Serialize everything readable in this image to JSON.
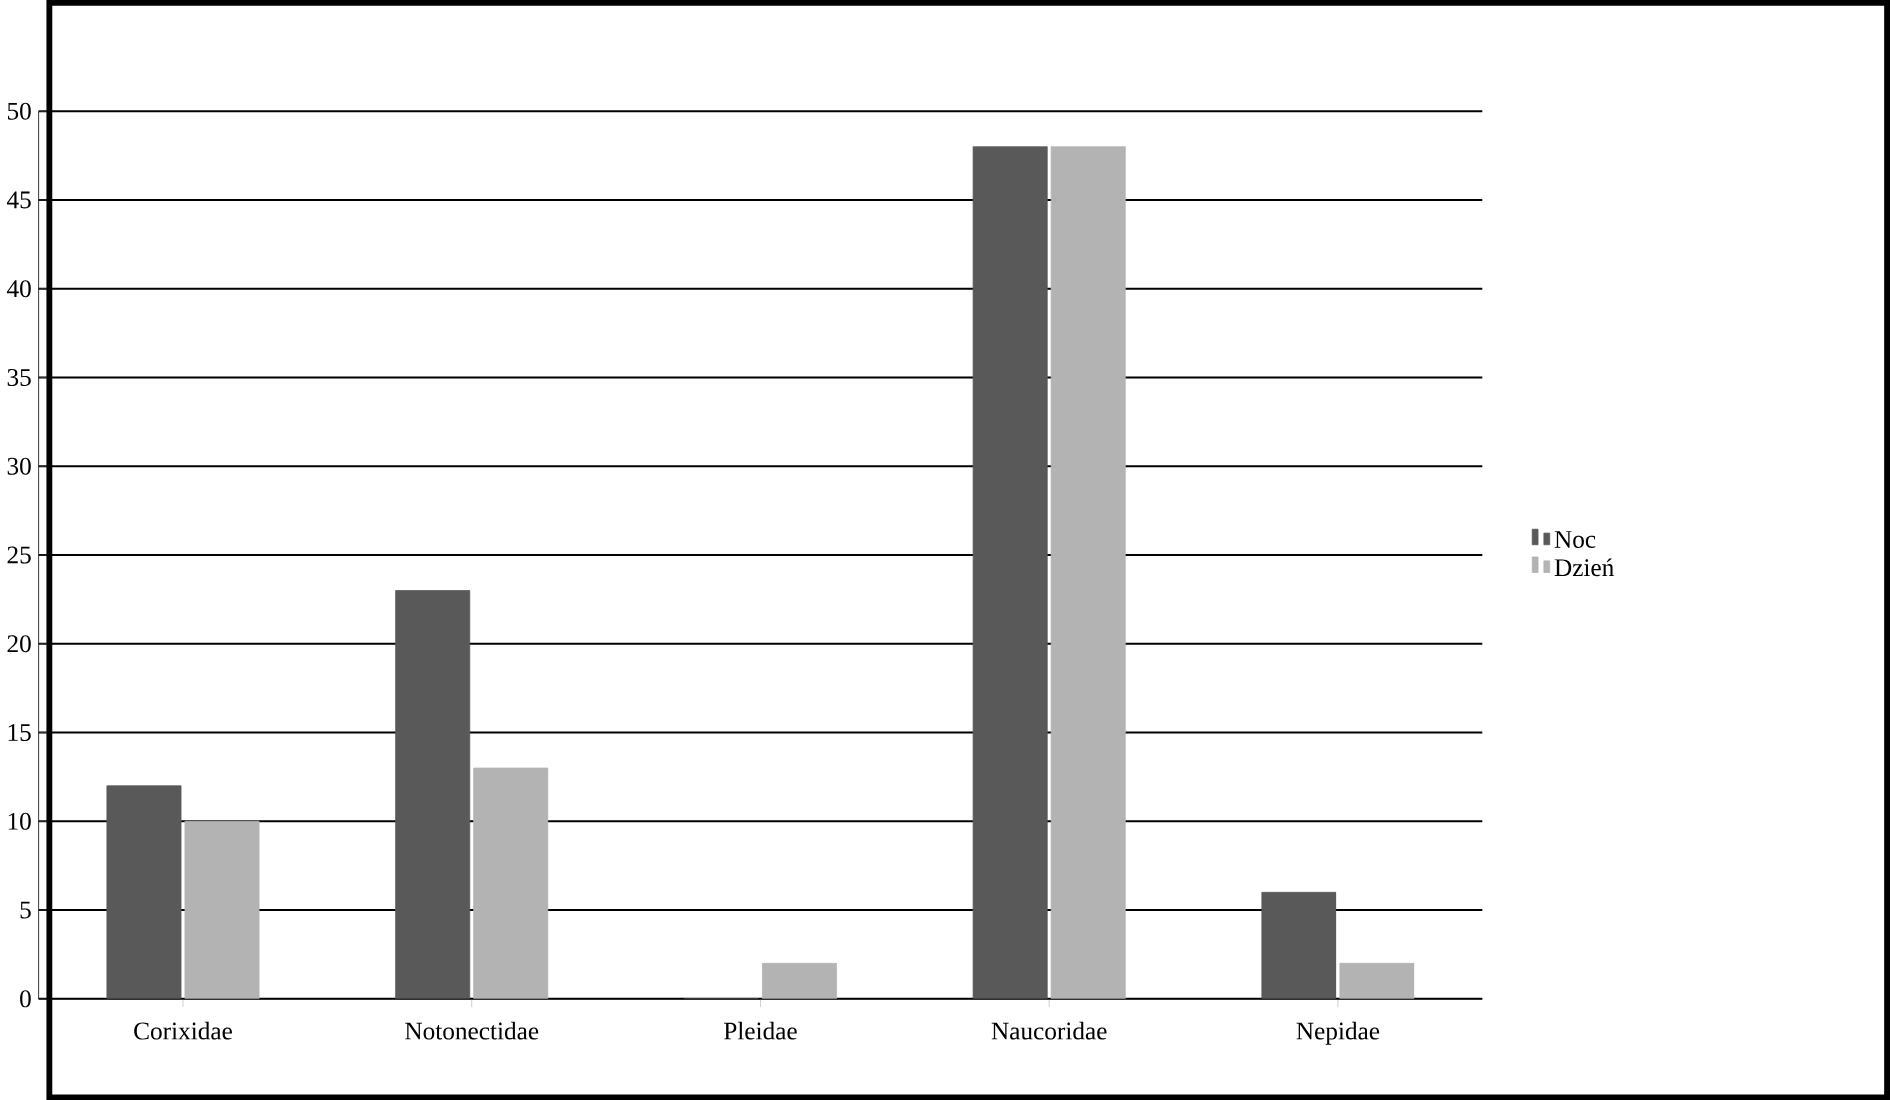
{
  "chart_data": {
    "type": "bar",
    "categories": [
      "Corixidae",
      "Notonectidae",
      "Pleidae",
      "Naucoridae",
      "Nepidae"
    ],
    "series": [
      {
        "name": "Noc",
        "color": "#595959",
        "values": [
          12,
          23,
          0,
          48,
          6
        ]
      },
      {
        "name": "Dzień",
        "color": "#b3b3b3",
        "values": [
          10,
          13,
          2,
          48,
          2
        ]
      }
    ],
    "ylim": [
      0,
      50
    ],
    "yticks": [
      0,
      5,
      10,
      15,
      20,
      25,
      30,
      35,
      40,
      45,
      50
    ],
    "grid": "y",
    "legend": "right"
  }
}
